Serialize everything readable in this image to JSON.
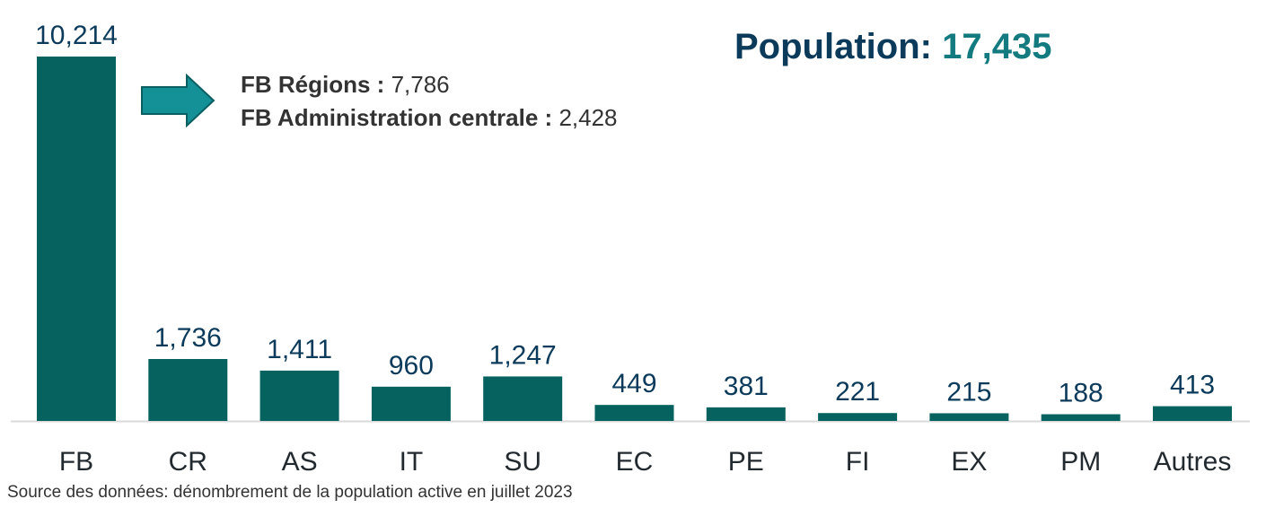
{
  "chart_data": {
    "type": "bar",
    "categories": [
      "FB",
      "CR",
      "AS",
      "IT",
      "SU",
      "EC",
      "PE",
      "FI",
      "EX",
      "PM",
      "Autres"
    ],
    "values": [
      10214,
      1736,
      1411,
      960,
      1247,
      449,
      381,
      221,
      215,
      188,
      413
    ],
    "value_labels": [
      "10,214",
      "1,736",
      "1,411",
      "960",
      "1,247",
      "449",
      "381",
      "221",
      "215",
      "188",
      "413"
    ],
    "ylim": [
      0,
      10214
    ],
    "grid": false,
    "bar_color": "#05625f"
  },
  "population": {
    "label": "Population:",
    "value": "17,435",
    "value_color": "#137a80"
  },
  "breakdown": [
    {
      "label": "FB Régions :",
      "value": "7,786"
    },
    {
      "label": "FB Administration centrale :",
      "value": "2,428"
    }
  ],
  "source": "Source des données: dénombrement de la population active en juillet 2023"
}
